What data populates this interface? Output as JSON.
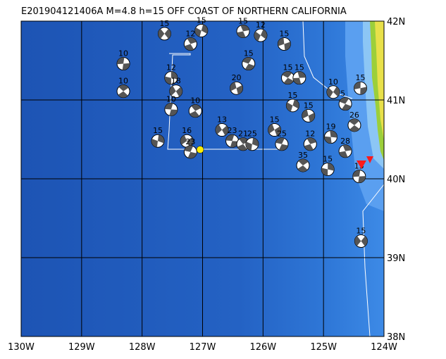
{
  "map": {
    "title": "E201904121406A M=4.8 h=15 OFF COAST OF NORTHERN CALIFORNIA",
    "xlim": [
      -130,
      -124
    ],
    "ylim": [
      38,
      42
    ],
    "xticks": [
      {
        "value": -130,
        "label": "130W"
      },
      {
        "value": -129,
        "label": "129W"
      },
      {
        "value": -128,
        "label": "128W"
      },
      {
        "value": -127,
        "label": "127W"
      },
      {
        "value": -126,
        "label": "126W"
      },
      {
        "value": -125,
        "label": "125W"
      },
      {
        "value": -124,
        "label": "124W"
      }
    ],
    "yticks": [
      {
        "value": 42,
        "label": "42N"
      },
      {
        "value": 41,
        "label": "41N"
      },
      {
        "value": 40,
        "label": "40N"
      },
      {
        "value": 39,
        "label": "39N"
      },
      {
        "value": 38,
        "label": "38N"
      }
    ],
    "main_event": {
      "lon": -127.04,
      "lat": 40.37,
      "color": "#ffee00"
    },
    "events": [
      {
        "lon": -127.63,
        "lat": 41.84,
        "depth": 15
      },
      {
        "lon": -128.31,
        "lat": 41.46,
        "depth": 10
      },
      {
        "lon": -128.31,
        "lat": 41.11,
        "depth": 10
      },
      {
        "lon": -127.52,
        "lat": 41.28,
        "depth": 12
      },
      {
        "lon": -127.44,
        "lat": 41.11,
        "depth": 18
      },
      {
        "lon": -127.52,
        "lat": 40.88,
        "depth": 10
      },
      {
        "lon": -127.12,
        "lat": 40.86,
        "depth": 10
      },
      {
        "lon": -127.74,
        "lat": 40.48,
        "depth": 15
      },
      {
        "lon": -127.26,
        "lat": 40.48,
        "depth": 16
      },
      {
        "lon": -127.2,
        "lat": 40.34,
        "depth": 23
      },
      {
        "lon": -127.2,
        "lat": 41.71,
        "depth": 12
      },
      {
        "lon": -127.02,
        "lat": 41.88,
        "depth": 15
      },
      {
        "lon": -126.44,
        "lat": 41.15,
        "depth": 20
      },
      {
        "lon": -126.24,
        "lat": 41.46,
        "depth": 15
      },
      {
        "lon": -126.33,
        "lat": 41.87,
        "depth": 15
      },
      {
        "lon": -126.04,
        "lat": 41.82,
        "depth": 12
      },
      {
        "lon": -125.65,
        "lat": 41.71,
        "depth": 15
      },
      {
        "lon": -125.59,
        "lat": 41.28,
        "depth": 15
      },
      {
        "lon": -125.4,
        "lat": 41.28,
        "depth": 15
      },
      {
        "lon": -124.84,
        "lat": 41.1,
        "depth": 10
      },
      {
        "lon": -124.39,
        "lat": 41.15,
        "depth": 15
      },
      {
        "lon": -124.49,
        "lat": 40.68,
        "depth": 26
      },
      {
        "lon": -124.88,
        "lat": 40.53,
        "depth": 19
      },
      {
        "lon": -124.38,
        "lat": 39.21,
        "depth": 15
      },
      {
        "lon": -124.41,
        "lat": 40.03,
        "depth": 15
      },
      {
        "lon": -125.34,
        "lat": 40.17,
        "depth": 35
      },
      {
        "lon": -124.93,
        "lat": 40.12,
        "depth": 15
      },
      {
        "lon": -126.68,
        "lat": 40.62,
        "depth": 13
      },
      {
        "lon": -126.51,
        "lat": 40.48,
        "depth": 23
      },
      {
        "lon": -126.33,
        "lat": 40.44,
        "depth": 21
      },
      {
        "lon": -126.18,
        "lat": 40.44,
        "depth": 25
      },
      {
        "lon": -125.81,
        "lat": 40.62,
        "depth": 15
      },
      {
        "lon": -125.69,
        "lat": 40.44,
        "depth": 25
      },
      {
        "lon": -125.22,
        "lat": 40.44,
        "depth": 12
      },
      {
        "lon": -125.51,
        "lat": 40.93,
        "depth": 15
      },
      {
        "lon": -125.25,
        "lat": 40.8,
        "depth": 15
      },
      {
        "lon": -124.64,
        "lat": 40.95,
        "depth": 5
      },
      {
        "lon": -124.64,
        "lat": 40.35,
        "depth": 28
      }
    ]
  }
}
